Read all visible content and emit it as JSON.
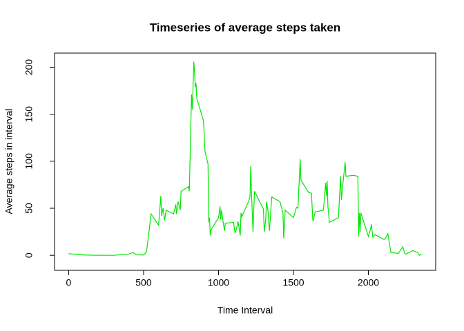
{
  "chart_data": {
    "type": "line",
    "title": "Timeseries of average steps taken",
    "x_label": "Time Interval",
    "y_label": "Average steps in interval",
    "x": [
      0,
      100,
      200,
      300,
      400,
      430,
      450,
      500,
      510,
      520,
      550,
      600,
      615,
      620,
      630,
      640,
      650,
      700,
      715,
      720,
      730,
      745,
      750,
      800,
      805,
      820,
      825,
      830,
      835,
      840,
      845,
      850,
      855,
      900,
      910,
      930,
      935,
      940,
      945,
      950,
      1000,
      1010,
      1015,
      1020,
      1030,
      1040,
      1045,
      1100,
      1110,
      1115,
      1125,
      1130,
      1145,
      1150,
      1155,
      1200,
      1210,
      1215,
      1220,
      1230,
      1240,
      1300,
      1305,
      1315,
      1320,
      1330,
      1340,
      1355,
      1410,
      1430,
      1435,
      1445,
      1500,
      1520,
      1530,
      1545,
      1550,
      1600,
      1620,
      1630,
      1645,
      1700,
      1715,
      1720,
      1725,
      1730,
      1740,
      1800,
      1815,
      1820,
      1830,
      1845,
      1850,
      1900,
      1930,
      1935,
      1940,
      1945,
      1950,
      2000,
      2015,
      2020,
      2030,
      2045,
      2100,
      2110,
      2130,
      2150,
      2200,
      2230,
      2245,
      2300,
      2310,
      2330,
      2340,
      2355
    ],
    "series": [
      {
        "name": "steps",
        "color": "#00e600",
        "values": [
          1.7,
          0.3,
          0,
          0,
          1.2,
          3,
          0.5,
          0.3,
          2,
          4,
          44,
          32,
          63,
          42,
          50,
          37,
          48,
          44,
          54,
          44,
          57,
          48,
          68,
          73,
          68,
          171,
          155,
          178,
          206,
          195,
          179,
          183,
          167,
          143,
          110,
          97,
          35,
          40,
          21,
          27,
          40,
          52,
          38,
          48,
          36,
          26,
          34,
          35,
          24,
          25,
          32,
          36,
          21,
          45,
          41,
          57,
          62,
          95,
          67,
          25,
          68,
          49,
          25,
          38,
          57,
          48,
          26,
          62,
          57,
          45,
          18,
          48,
          40,
          51,
          50,
          102,
          80,
          67,
          66,
          36,
          46,
          48,
          77,
          63,
          79,
          52,
          35,
          40,
          84,
          59,
          76,
          99,
          84,
          85,
          84,
          20,
          45,
          25,
          45,
          20,
          28,
          33,
          19,
          22,
          17,
          17,
          23,
          3,
          2,
          9,
          1,
          5,
          4,
          3,
          0,
          1
        ]
      }
    ],
    "xlim": [
      -94.2,
      2449.2
    ],
    "ylim": [
      -16,
      215
    ],
    "xticks": [
      0,
      500,
      1000,
      1500,
      2000
    ],
    "yticks": [
      0,
      50,
      100,
      150,
      200
    ]
  }
}
